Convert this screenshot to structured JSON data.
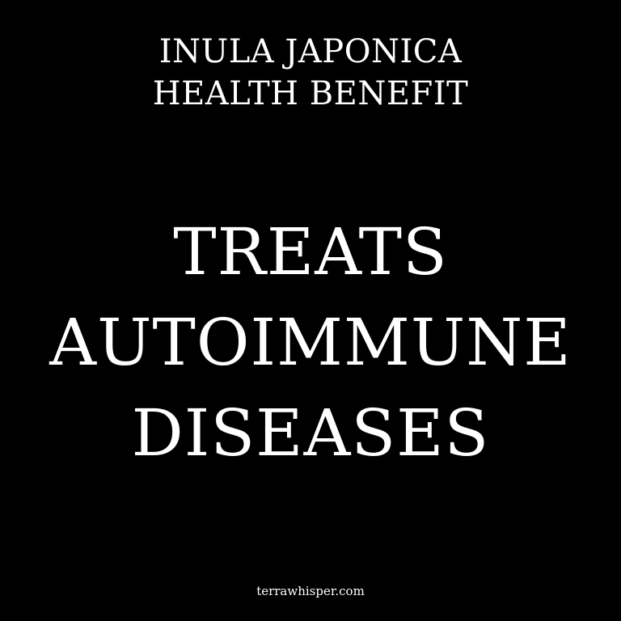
{
  "subtitle": {
    "line1": "INULA JAPONICA",
    "line2": "HEALTH BENEFIT"
  },
  "headline": {
    "line1": "TREATS",
    "line2": "AUTOIMMUNE",
    "line3": "DISEASES"
  },
  "footer": {
    "site": "terrawhisper.com"
  },
  "colors": {
    "background": "#000000",
    "text": "#ffffff"
  }
}
